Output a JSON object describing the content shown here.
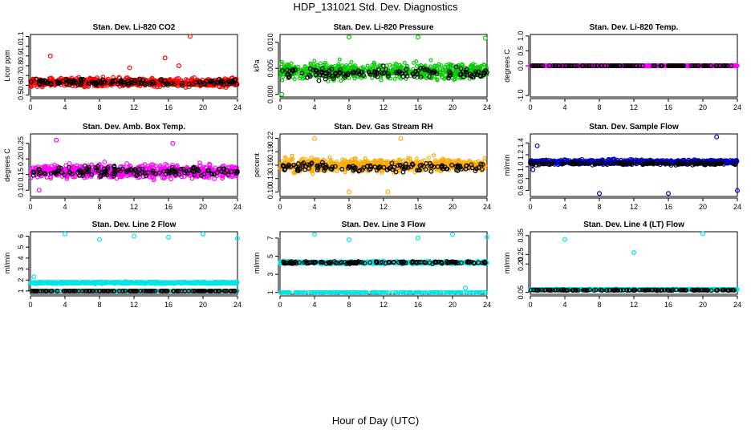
{
  "title": "HDP_131021  Std. Dev. Diagnostics",
  "xlabel": "Hour of Day (UTC)",
  "chart_data": [
    {
      "type": "scatter",
      "title": "Stan. Dev. Li-820 CO2",
      "ylabel": "Licor ppm",
      "xlim": [
        0,
        24
      ],
      "xticks": [
        0,
        4,
        8,
        12,
        16,
        20,
        24
      ],
      "ylim": [
        0.48,
        1.12
      ],
      "yticks": [
        "0.5",
        "0.6",
        "0.7",
        "0.8",
        "0.9",
        "1.0",
        "1.1"
      ],
      "series": [
        {
          "color": "#ff0000",
          "values": [
            0.52,
            0.55,
            0.58,
            0.6,
            0.62,
            0.64,
            0.66,
            0.68,
            0.7,
            0.72,
            0.75,
            0.8,
            0.9,
            1.1
          ]
        },
        {
          "color": "#000000",
          "values": [
            0.55,
            0.58,
            0.6,
            0.62,
            0.64,
            0.66,
            0.68,
            0.7,
            0.72,
            0.78
          ]
        }
      ]
    },
    {
      "type": "scatter",
      "title": "Stan. Dev. Li-820 Pressure",
      "ylabel": "kPa",
      "xlim": [
        0,
        24
      ],
      "xticks": [
        0,
        4,
        8,
        12,
        16,
        20,
        24
      ],
      "ylim": [
        -0.0005,
        0.0115
      ],
      "yticks": [
        "0.000",
        "0.005",
        "0.010"
      ],
      "series": [
        {
          "color": "#00cc00",
          "values": [
            0,
            0.001,
            0.002,
            0.003,
            0.004,
            0.005,
            0.006,
            0.007,
            0.008,
            0.009,
            0.011
          ]
        },
        {
          "color": "#000000",
          "values": [
            0.001,
            0.003,
            0.004,
            0.005,
            0.006,
            0.007,
            0.008
          ]
        }
      ]
    },
    {
      "type": "scatter",
      "title": "Stan. Dev. Li-820 Temp.",
      "ylabel": "degrees C",
      "xlim": [
        0,
        24
      ],
      "xticks": [
        0,
        4,
        8,
        12,
        16,
        20,
        24
      ],
      "ylim": [
        -1.05,
        1.05
      ],
      "yticks": [
        "-1.0",
        "0.0",
        "0.5",
        "1.0"
      ],
      "series": [
        {
          "color": "#ff00ff",
          "values": [
            0
          ]
        },
        {
          "color": "#000000",
          "values": [
            0
          ]
        }
      ]
    },
    {
      "type": "scatter",
      "title": "Stan. Dev. Amb. Box Temp.",
      "ylabel": "degrees C",
      "xlim": [
        0,
        24
      ],
      "xticks": [
        0,
        4,
        8,
        12,
        16,
        20,
        24
      ],
      "ylim": [
        0.08,
        0.28
      ],
      "yticks": [
        "0.10",
        "0.15",
        "0.20",
        "0.25"
      ],
      "series": [
        {
          "color": "#ff00ff",
          "values": [
            0.1,
            0.12,
            0.14,
            0.16,
            0.18,
            0.2,
            0.22,
            0.25
          ]
        },
        {
          "color": "#000000",
          "values": [
            0.12,
            0.14,
            0.16,
            0.18,
            0.2,
            0.22
          ]
        }
      ]
    },
    {
      "type": "scatter",
      "title": "Stan. Dev. Gas Stream RH",
      "ylabel": "percent",
      "xlim": [
        0,
        24
      ],
      "xticks": [
        0,
        4,
        8,
        12,
        16,
        20,
        24
      ],
      "ylim": [
        0.09,
        0.23
      ],
      "yticks": [
        "0.10",
        "0.13",
        "0.16",
        "0.19",
        "0.22"
      ],
      "series": [
        {
          "color": "#ffaa00",
          "values": [
            0.1,
            0.12,
            0.14,
            0.16,
            0.18,
            0.2,
            0.22
          ]
        },
        {
          "color": "#000000",
          "values": [
            0.12,
            0.14,
            0.16,
            0.18,
            0.2
          ]
        }
      ]
    },
    {
      "type": "scatter",
      "title": "Stan. Dev. Sample Flow",
      "ylabel": "ml/min",
      "xlim": [
        0,
        24
      ],
      "xticks": [
        0,
        4,
        8,
        12,
        16,
        20,
        24
      ],
      "ylim": [
        0.5,
        1.55
      ],
      "yticks": [
        "0.6",
        "0.8",
        "1.0",
        "1.2",
        "1.4"
      ],
      "series": [
        {
          "color": "#0000cc",
          "values": [
            0.55,
            0.95,
            1.0,
            1.05,
            1.1,
            1.15,
            1.2,
            1.3,
            1.5
          ]
        },
        {
          "color": "#000000",
          "values": [
            1.0,
            1.05,
            1.1,
            1.15
          ]
        }
      ]
    },
    {
      "type": "scatter",
      "title": "Stan. Dev. Line 2 Flow",
      "ylabel": "ml/min",
      "xlim": [
        0,
        24
      ],
      "xticks": [
        0,
        4,
        8,
        12,
        16,
        20,
        24
      ],
      "ylim": [
        0.7,
        6.4
      ],
      "yticks": [
        "1",
        "2",
        "3",
        "4",
        "5",
        "6"
      ],
      "series": [
        {
          "color": "#00e5e5",
          "values": [
            1.4,
            1.6,
            1.8,
            2.3,
            5.8,
            6.2
          ]
        },
        {
          "color": "#000000",
          "values": [
            1.0
          ]
        }
      ]
    },
    {
      "type": "scatter",
      "title": "Stan. Dev. Line 3 Flow",
      "ylabel": "ml/min",
      "xlim": [
        0,
        24
      ],
      "xticks": [
        0,
        4,
        8,
        12,
        16,
        20,
        24
      ],
      "ylim": [
        0.8,
        7.7
      ],
      "yticks": [
        "1",
        "3",
        "5",
        "7"
      ],
      "series": [
        {
          "color": "#00e5e5",
          "values": [
            1.0,
            1.3,
            4.0,
            4.3,
            4.6,
            6.8,
            7.4
          ]
        },
        {
          "color": "#000000",
          "values": [
            4.0,
            4.2,
            4.4,
            4.6
          ]
        }
      ]
    },
    {
      "type": "scatter",
      "title": "Stan. Dev. Line 4 (LT) Flow",
      "ylabel": "ml/min",
      "xlim": [
        0,
        24
      ],
      "xticks": [
        0,
        4,
        8,
        12,
        16,
        20,
        24
      ],
      "ylim": [
        0.04,
        0.37
      ],
      "yticks": [
        "0.05",
        "0.20",
        "0.25",
        "0.35"
      ],
      "series": [
        {
          "color": "#00e5e5",
          "values": [
            0.06,
            0.065,
            0.07,
            0.26,
            0.33,
            0.36
          ]
        },
        {
          "color": "#000000",
          "values": [
            0.06,
            0.065
          ]
        }
      ]
    }
  ]
}
